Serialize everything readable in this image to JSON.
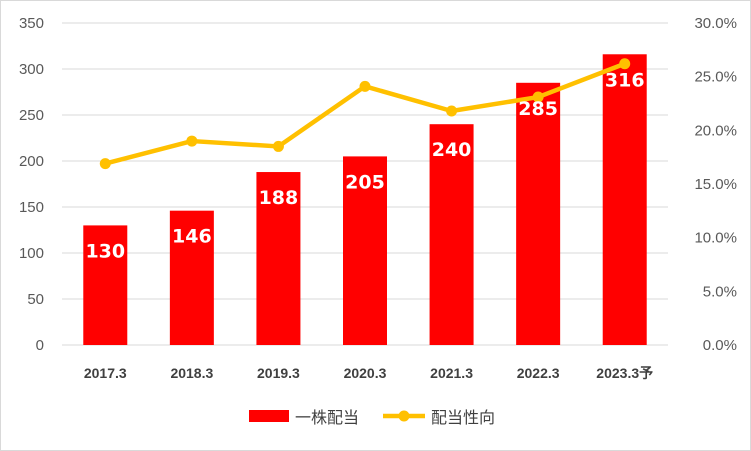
{
  "chart_data": {
    "type": "bar",
    "categories": [
      "2017.3",
      "2018.3",
      "2019.3",
      "2020.3",
      "2021.3",
      "2022.3",
      "2023.3予"
    ],
    "series": [
      {
        "name": "一株配当",
        "type": "bar",
        "axis": "left",
        "values": [
          130,
          146,
          188,
          205,
          240,
          285,
          316
        ],
        "data_labels": [
          "130",
          "146",
          "188",
          "205",
          "240",
          "285",
          "316"
        ]
      },
      {
        "name": "配当性向",
        "type": "line",
        "axis": "right",
        "values": [
          0.169,
          0.19,
          0.185,
          0.241,
          0.218,
          0.231,
          0.262
        ]
      }
    ],
    "ylim_left": [
      0,
      350
    ],
    "yticks_left": [
      "0",
      "50",
      "100",
      "150",
      "200",
      "250",
      "300",
      "350"
    ],
    "ylim_right": [
      0,
      0.3
    ],
    "yticks_right": [
      "0.0%",
      "5.0%",
      "10.0%",
      "15.0%",
      "20.0%",
      "25.0%",
      "30.0%"
    ],
    "grid": "horizontal",
    "legend_position": "bottom",
    "colors": {
      "bar": "#ff0000",
      "line": "#ffc000",
      "grid": "#d9d9d9"
    }
  }
}
